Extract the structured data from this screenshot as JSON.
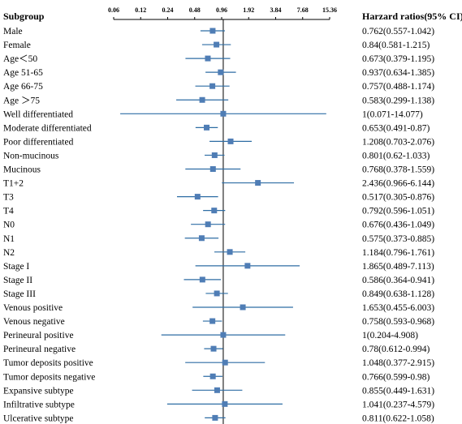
{
  "chart_data": {
    "type": "forest",
    "left_header": "Subgroup",
    "right_header": "Harzard ratios(95% CI)",
    "x_scale": "log2",
    "x_ticks": [
      "0.06",
      "0.12",
      "0.24",
      "0.48",
      "0.96",
      "1.92",
      "3.84",
      "7.68",
      "15.36"
    ],
    "x_range": [
      0.06,
      15.36
    ],
    "reference_line": 1,
    "marker_color": "#4F7DB5",
    "line_color": "#2E6DA4",
    "rows": [
      {
        "label": "Male",
        "hr": 0.762,
        "lo": 0.557,
        "hi": 1.042,
        "text": "0.762(0.557-1.042)"
      },
      {
        "label": "Female",
        "hr": 0.84,
        "lo": 0.581,
        "hi": 1.215,
        "text": "0.84(0.581-1.215)"
      },
      {
        "label": "Age＜50",
        "hr": 0.673,
        "lo": 0.379,
        "hi": 1.195,
        "text": "0.673(0.379-1.195)"
      },
      {
        "label": "Age 51-65",
        "hr": 0.937,
        "lo": 0.634,
        "hi": 1.385,
        "text": "0.937(0.634-1.385)"
      },
      {
        "label": "Age 66-75",
        "hr": 0.757,
        "lo": 0.488,
        "hi": 1.174,
        "text": "0.757(0.488-1.174)"
      },
      {
        "label": "Age ＞75",
        "hr": 0.583,
        "lo": 0.299,
        "hi": 1.138,
        "text": "0.583(0.299-1.138)"
      },
      {
        "label": "Well differentiated",
        "hr": 1,
        "lo": 0.071,
        "hi": 14.077,
        "text": "1(0.071-14.077)"
      },
      {
        "label": "Moderate differentiated",
        "hr": 0.653,
        "lo": 0.491,
        "hi": 0.87,
        "text": "0.653(0.491-0.87)"
      },
      {
        "label": "Poor differentiated",
        "hr": 1.208,
        "lo": 0.703,
        "hi": 2.076,
        "text": "1.208(0.703-2.076)"
      },
      {
        "label": "Non-mucinous",
        "hr": 0.801,
        "lo": 0.62,
        "hi": 1.033,
        "text": "0.801(0.62-1.033)"
      },
      {
        "label": "Mucinous",
        "hr": 0.768,
        "lo": 0.378,
        "hi": 1.559,
        "text": "0.768(0.378-1.559)"
      },
      {
        "label": "T1+2",
        "hr": 2.436,
        "lo": 0.966,
        "hi": 6.144,
        "text": "2.436(0.966-6.144)"
      },
      {
        "label": "T3",
        "hr": 0.517,
        "lo": 0.305,
        "hi": 0.876,
        "text": "0.517(0.305-0.876)"
      },
      {
        "label": "T4",
        "hr": 0.792,
        "lo": 0.596,
        "hi": 1.051,
        "text": "0.792(0.596-1.051)"
      },
      {
        "label": "N0",
        "hr": 0.676,
        "lo": 0.436,
        "hi": 1.049,
        "text": "0.676(0.436-1.049)"
      },
      {
        "label": "N1",
        "hr": 0.575,
        "lo": 0.373,
        "hi": 0.885,
        "text": "0.575(0.373-0.885)"
      },
      {
        "label": "N2",
        "hr": 1.184,
        "lo": 0.796,
        "hi": 1.761,
        "text": "1.184(0.796-1.761)"
      },
      {
        "label": "Stage I",
        "hr": 1.865,
        "lo": 0.489,
        "hi": 7.113,
        "text": "1.865(0.489-7.113)"
      },
      {
        "label": "Stage II",
        "hr": 0.586,
        "lo": 0.364,
        "hi": 0.941,
        "text": "0.586(0.364-0.941)"
      },
      {
        "label": "Stage III",
        "hr": 0.849,
        "lo": 0.638,
        "hi": 1.128,
        "text": "0.849(0.638-1.128)"
      },
      {
        "label": "Venous positive",
        "hr": 1.653,
        "lo": 0.455,
        "hi": 6.003,
        "text": "1.653(0.455-6.003)"
      },
      {
        "label": "Venous negative",
        "hr": 0.758,
        "lo": 0.593,
        "hi": 0.968,
        "text": "0.758(0.593-0.968)"
      },
      {
        "label": "Perineural positive",
        "hr": 1,
        "lo": 0.204,
        "hi": 4.908,
        "text": "1(0.204-4.908)"
      },
      {
        "label": "Perineural negative",
        "hr": 0.78,
        "lo": 0.612,
        "hi": 0.994,
        "text": "0.78(0.612-0.994)"
      },
      {
        "label": "Tumor deposits positive",
        "hr": 1.048,
        "lo": 0.377,
        "hi": 2.915,
        "text": "1.048(0.377-2.915)"
      },
      {
        "label": "Tumor deposits negative",
        "hr": 0.766,
        "lo": 0.599,
        "hi": 0.98,
        "text": "0.766(0.599-0.98)"
      },
      {
        "label": "Expansive subtype",
        "hr": 0.855,
        "lo": 0.449,
        "hi": 1.631,
        "text": "0.855(0.449-1.631)"
      },
      {
        "label": "Infiltrative subtype",
        "hr": 1.041,
        "lo": 0.237,
        "hi": 4.579,
        "text": "1.041(0.237-4.579)"
      },
      {
        "label": "Ulcerative subtype",
        "hr": 0.811,
        "lo": 0.622,
        "hi": 1.058,
        "text": "0.811(0.622-1.058)"
      }
    ]
  }
}
